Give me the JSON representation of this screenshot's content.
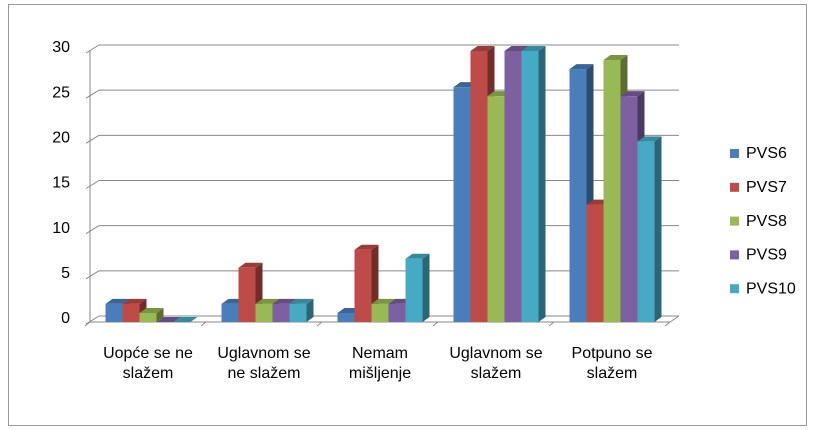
{
  "chart_data": {
    "type": "bar3d",
    "categories": [
      "Uopće se ne slažem",
      "Uglavnom se ne slažem",
      "Nemam mišljenje",
      "Uglavnom se slažem",
      "Potpuno se slažem"
    ],
    "series": [
      {
        "name": "PVS6",
        "color": "#4a7ebb",
        "values": [
          2,
          2,
          1,
          26,
          28
        ]
      },
      {
        "name": "PVS7",
        "color": "#be4b48",
        "values": [
          2,
          6,
          8,
          30,
          13
        ]
      },
      {
        "name": "PVS8",
        "color": "#98b954",
        "values": [
          1,
          2,
          2,
          25,
          29
        ]
      },
      {
        "name": "PVS9",
        "color": "#7d60a0",
        "values": [
          0,
          2,
          2,
          30,
          25
        ]
      },
      {
        "name": "PVS10",
        "color": "#46aac5",
        "values": [
          0,
          2,
          7,
          30,
          20
        ]
      }
    ],
    "ylim": [
      0,
      30
    ],
    "yticks": [
      0,
      5,
      10,
      15,
      20,
      25,
      30
    ],
    "grid": true,
    "legend": "right"
  }
}
